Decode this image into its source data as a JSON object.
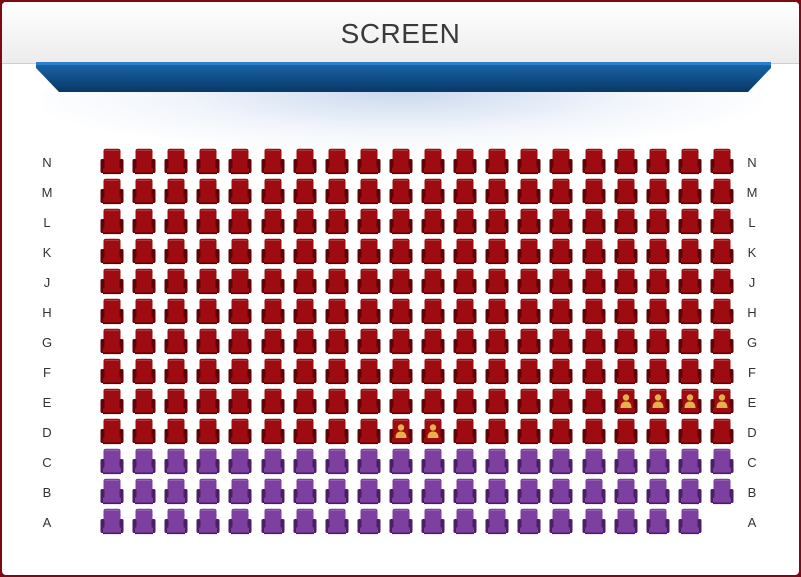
{
  "screen": {
    "title": "SCREEN"
  },
  "colors": {
    "available_red": "#9e0b10",
    "available_red_dark": "#5e0306",
    "available_purple": "#7d3fa0",
    "available_purple_dark": "#4a1f66",
    "occupied_icon": "#e8b048",
    "screen_bar": "#0c4f8c"
  },
  "icons": {
    "seat": "cinema-seat-icon",
    "occupied": "person-icon"
  },
  "seat_columns": 20,
  "rows": [
    {
      "label": "N",
      "type": "standard",
      "seat_count": 20,
      "occupied": []
    },
    {
      "label": "M",
      "type": "standard",
      "seat_count": 20,
      "occupied": []
    },
    {
      "label": "L",
      "type": "standard",
      "seat_count": 20,
      "occupied": []
    },
    {
      "label": "K",
      "type": "standard",
      "seat_count": 20,
      "occupied": []
    },
    {
      "label": "J",
      "type": "standard",
      "seat_count": 20,
      "occupied": []
    },
    {
      "label": "H",
      "type": "standard",
      "seat_count": 20,
      "occupied": []
    },
    {
      "label": "G",
      "type": "standard",
      "seat_count": 20,
      "occupied": []
    },
    {
      "label": "F",
      "type": "standard",
      "seat_count": 20,
      "occupied": []
    },
    {
      "label": "E",
      "type": "standard",
      "seat_count": 20,
      "occupied": [
        17,
        18,
        19,
        20
      ]
    },
    {
      "label": "D",
      "type": "standard",
      "seat_count": 20,
      "occupied": [
        10,
        11
      ]
    },
    {
      "label": "C",
      "type": "premium",
      "seat_count": 20,
      "occupied": []
    },
    {
      "label": "B",
      "type": "premium",
      "seat_count": 20,
      "occupied": []
    },
    {
      "label": "A",
      "type": "premium",
      "seat_count": 19,
      "occupied": []
    }
  ]
}
